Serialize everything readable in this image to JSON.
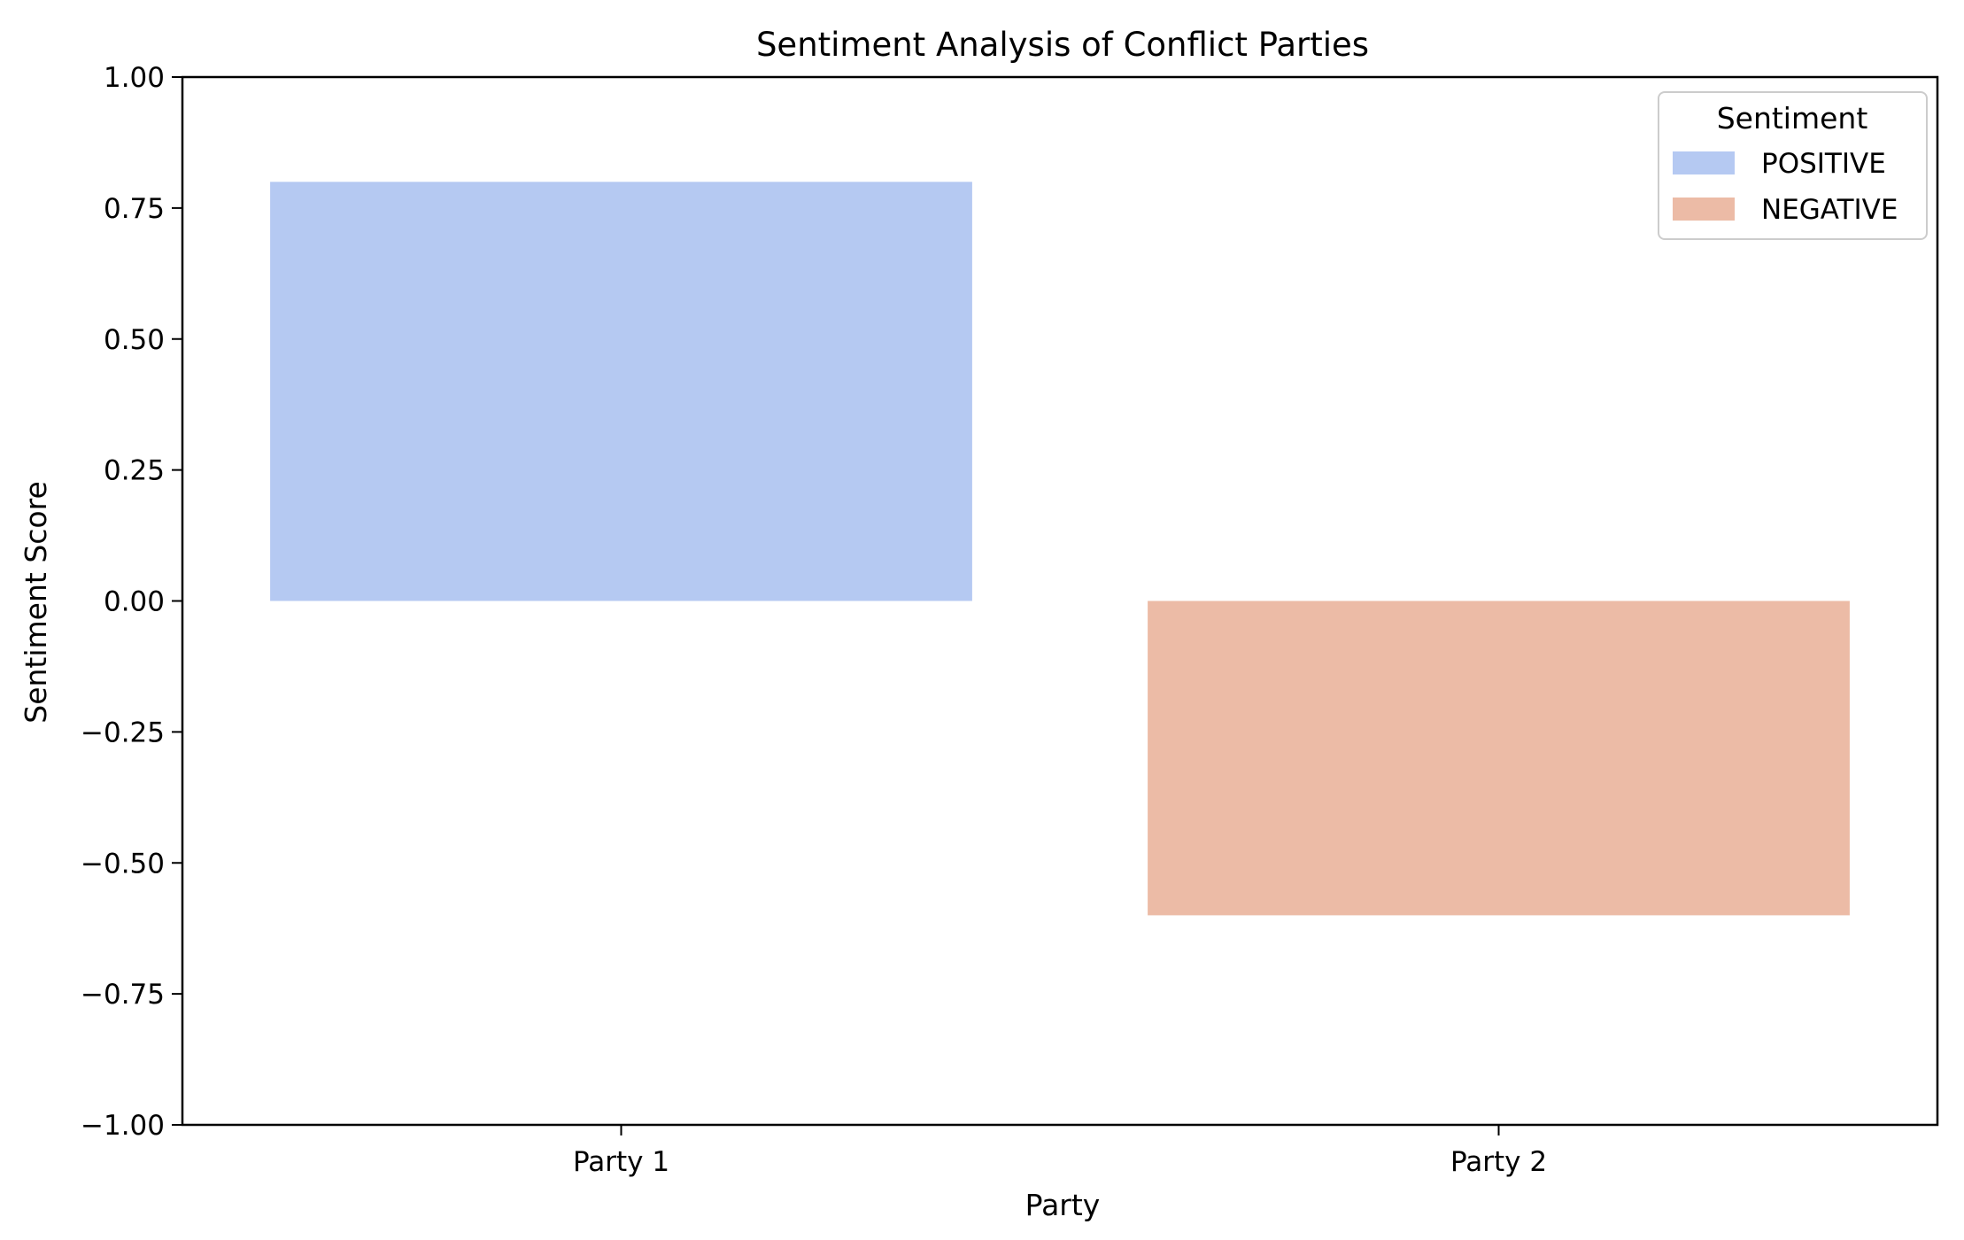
{
  "chart_data": {
    "type": "bar",
    "title": "Sentiment Analysis of Conflict Parties",
    "xlabel": "Party",
    "ylabel": "Sentiment Score",
    "categories": [
      "Party 1",
      "Party 2"
    ],
    "values": [
      0.8,
      -0.6
    ],
    "sentiments": [
      "POSITIVE",
      "NEGATIVE"
    ],
    "ylim": [
      -1.0,
      1.0
    ],
    "yticks": [
      1.0,
      0.75,
      0.5,
      0.25,
      0.0,
      -0.25,
      -0.5,
      -0.75,
      -1.0
    ],
    "ytick_labels": [
      "1.00",
      "0.75",
      "0.50",
      "0.25",
      "0.00",
      "−0.25",
      "−0.50",
      "−0.75",
      "−1.00"
    ],
    "grid": false,
    "legend": {
      "title": "Sentiment",
      "position": "top-right",
      "entries": [
        {
          "label": "POSITIVE",
          "color": "#b5c9f2"
        },
        {
          "label": "NEGATIVE",
          "color": "#ecbba6"
        }
      ]
    }
  }
}
